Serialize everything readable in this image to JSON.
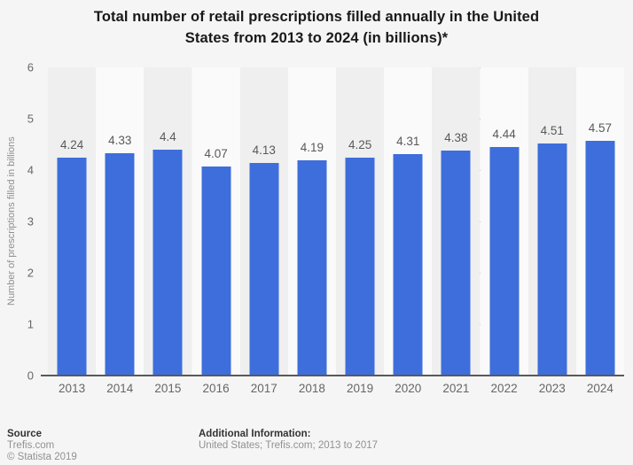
{
  "title_lines": [
    "Total number of retail prescriptions filled annually in the United",
    "States from 2013 to 2024 (in billions)*"
  ],
  "chart_data": {
    "type": "bar",
    "title": "Total number of retail prescriptions filled annually in the United States from 2013 to 2024 (in billions)*",
    "categories": [
      "2013",
      "2014",
      "2015",
      "2016",
      "2017",
      "2018",
      "2019",
      "2020",
      "2021",
      "2022",
      "2023",
      "2024"
    ],
    "values": [
      4.24,
      4.33,
      4.4,
      4.07,
      4.13,
      4.19,
      4.25,
      4.31,
      4.38,
      4.44,
      4.51,
      4.57
    ],
    "value_labels": [
      "4.24",
      "4.33",
      "4.4",
      "4.07",
      "4.13",
      "4.19",
      "4.25",
      "4.31",
      "4.38",
      "4.44",
      "4.51",
      "4.57"
    ],
    "xlabel": "",
    "ylabel": "Number of prescriptions filled in billions",
    "ylim": [
      0,
      6
    ],
    "yticks": [
      0,
      1,
      2,
      3,
      4,
      5,
      6
    ],
    "grid": "horizontal-dotted",
    "legend": "none"
  },
  "colors": {
    "bar": "#3d6edb",
    "stripe_dark": "#efefef",
    "stripe_light": "#fafafa",
    "gridline": "#c9c9c9",
    "axis": "#59595b",
    "title_text": "#191919",
    "tick_text": "#666666",
    "value_text": "#595959",
    "muted_text": "#919191"
  },
  "footer": {
    "source_label": "Source",
    "source_value": "Trefis.com",
    "copyright": "© Statista 2019",
    "additional_label": "Additional Information:",
    "additional_value": "United States; Trefis.com; 2013 to 2017"
  }
}
